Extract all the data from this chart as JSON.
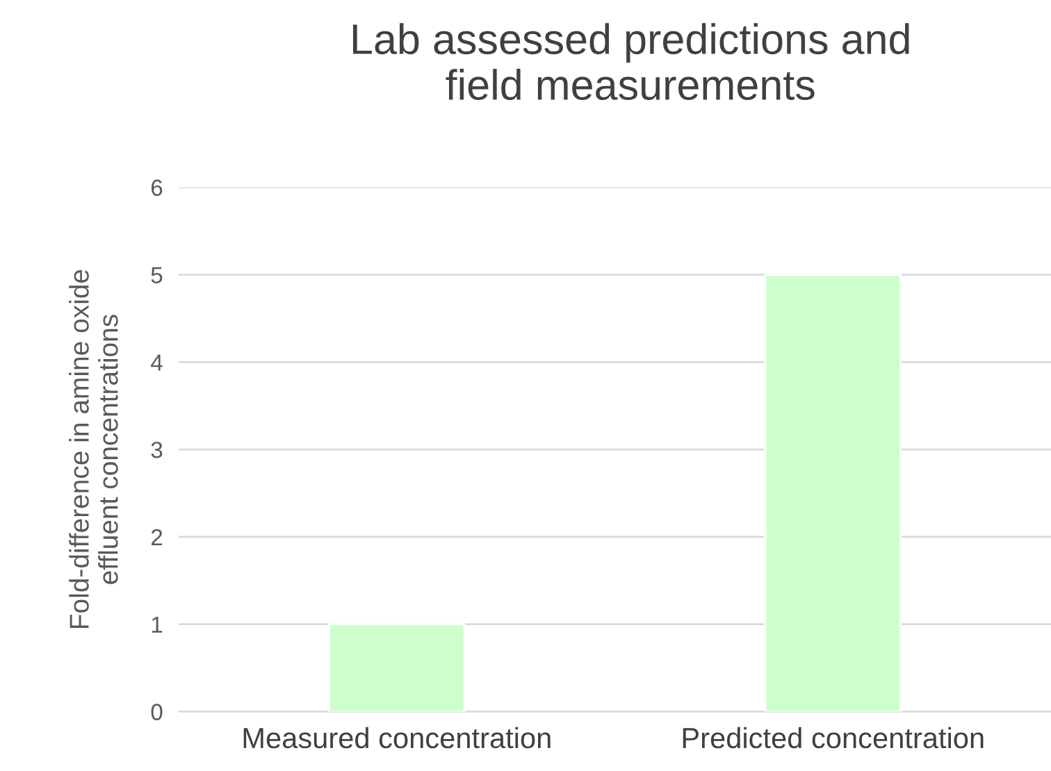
{
  "chart_data": {
    "type": "bar",
    "title": "Lab assessed predictions and\nfield measurements",
    "ylabel": "Fold-difference in amine oxide\neffluent concentrations",
    "categories": [
      "Measured concentration",
      "Predicted concentration"
    ],
    "values": [
      1,
      5
    ],
    "color": "#ccffcc",
    "ylim": [
      0,
      6
    ],
    "yticks": [
      0,
      1,
      2,
      3,
      4,
      5,
      6
    ],
    "grid": "y",
    "legend": false
  }
}
